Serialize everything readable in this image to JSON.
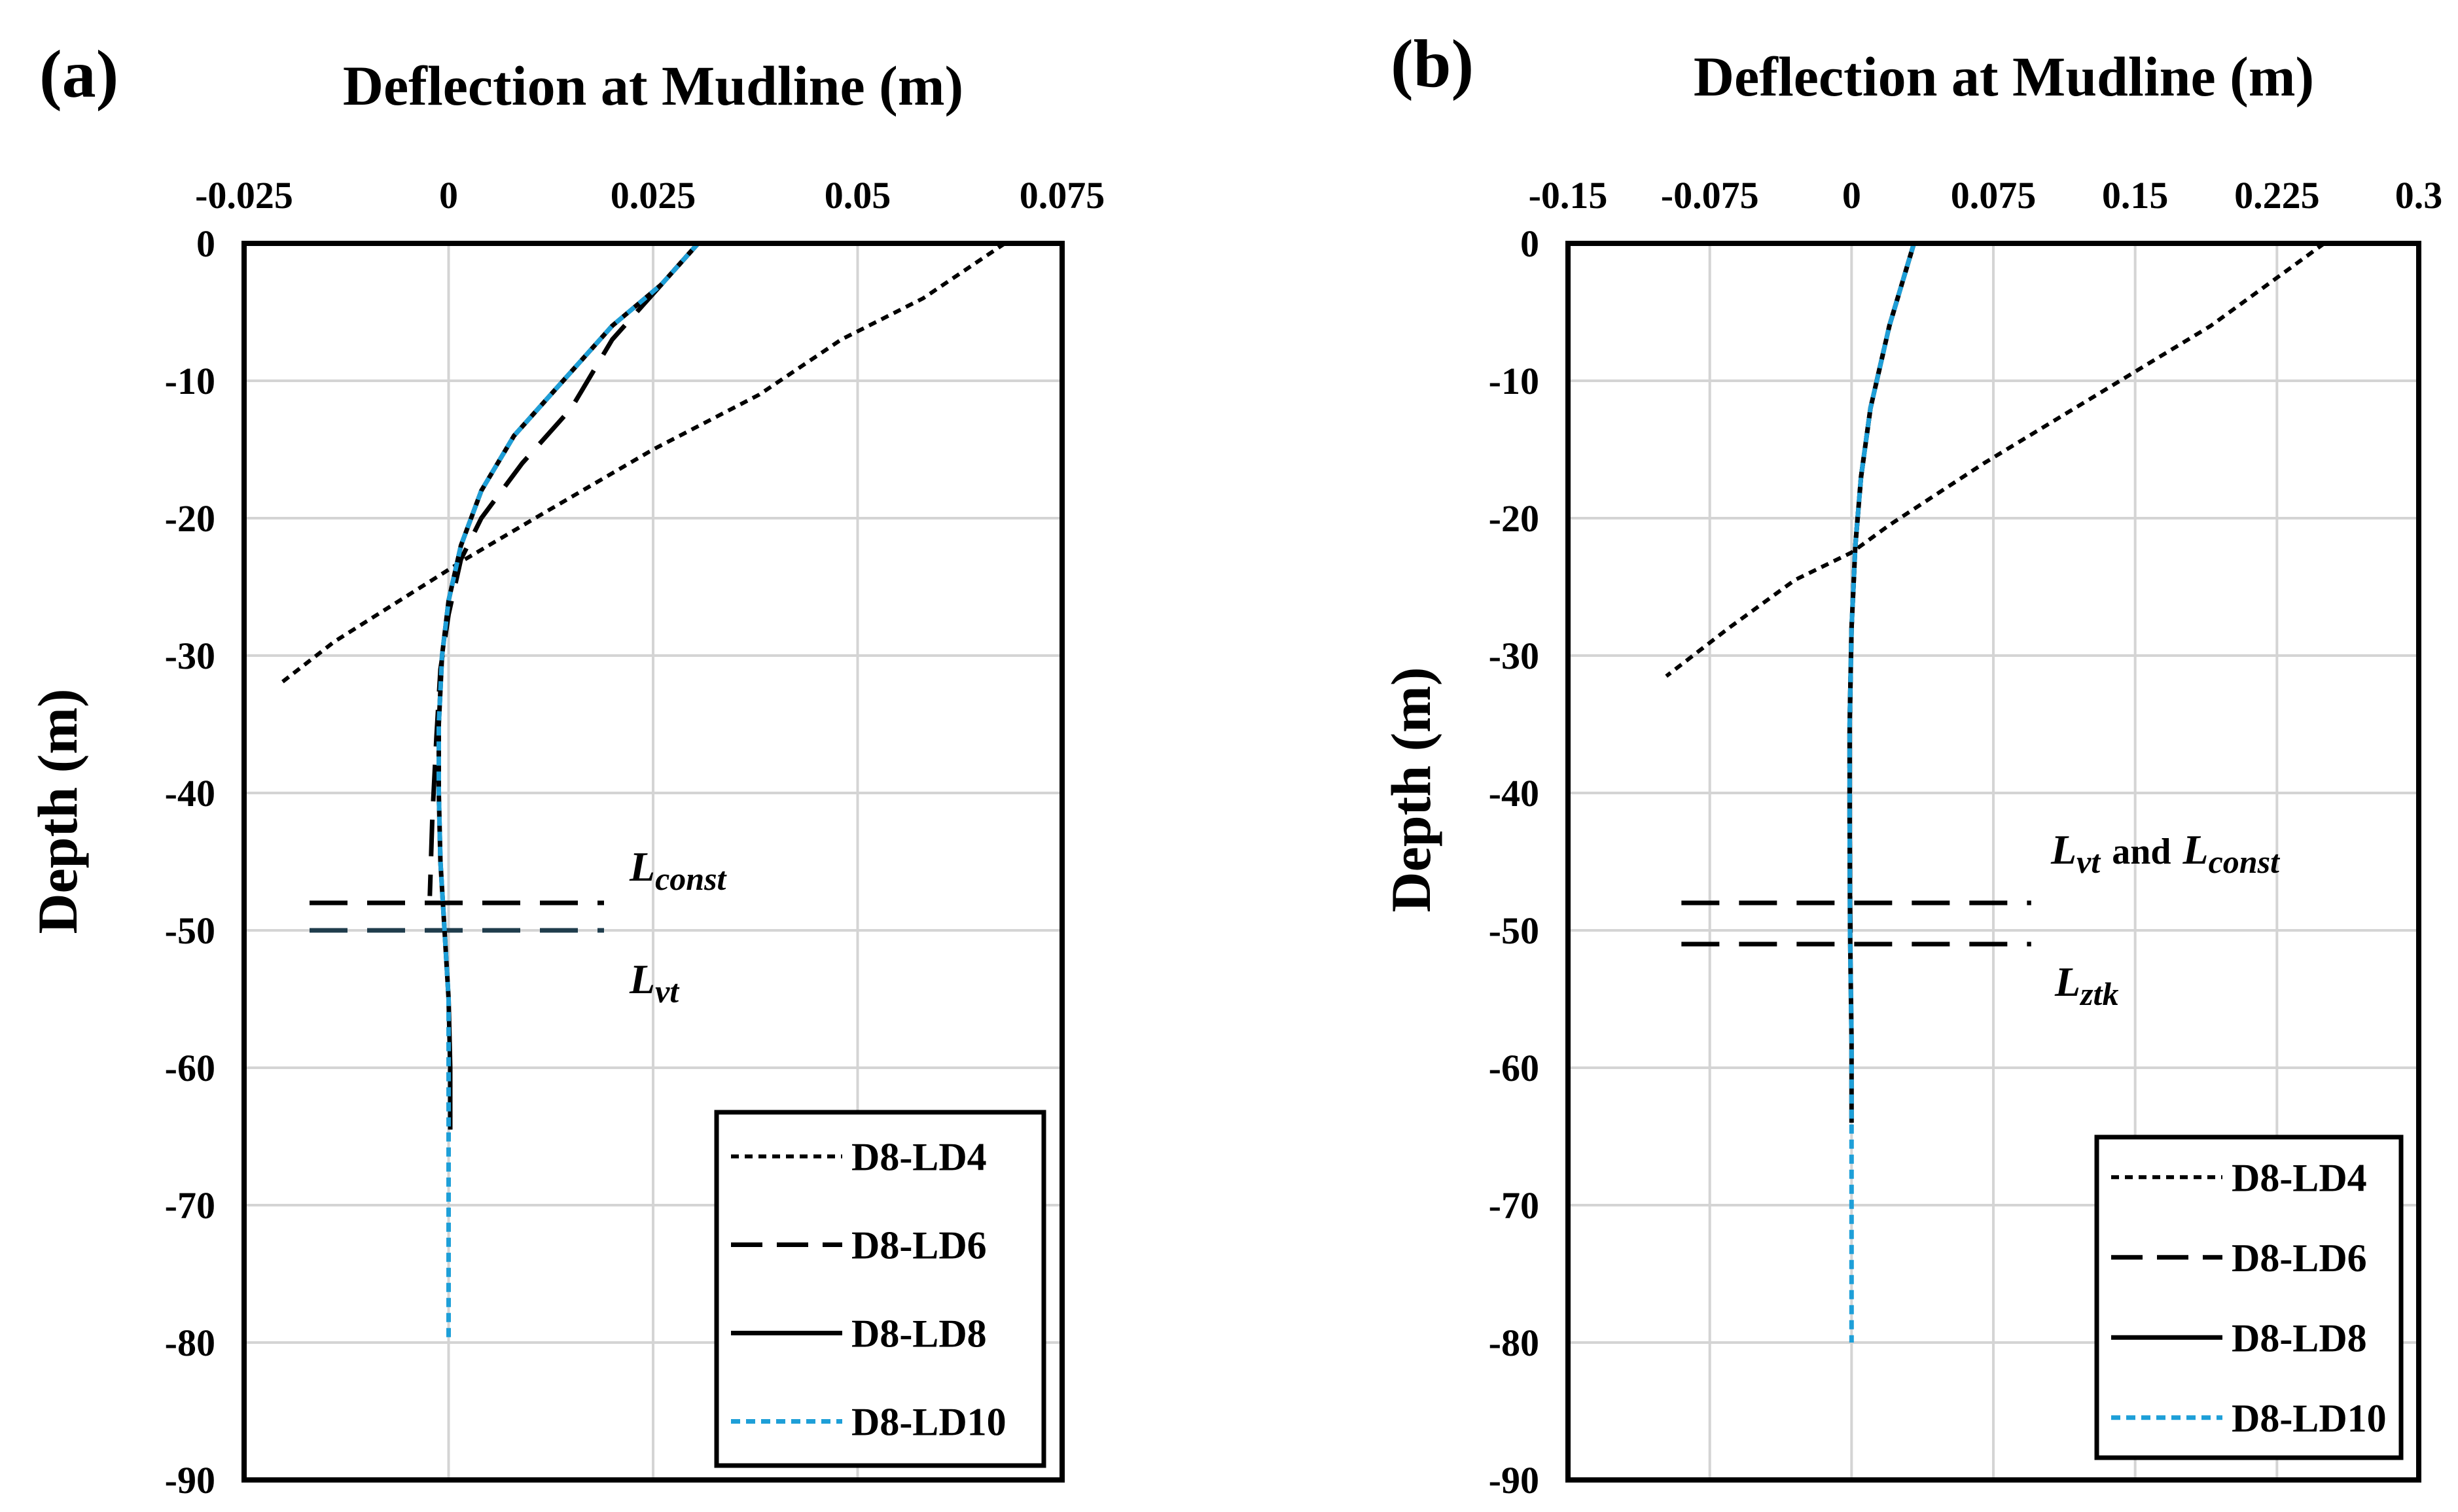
{
  "chart_data": [
    {
      "panel_label": "(a)",
      "type": "line",
      "title": "Deflection at Mudline (m)",
      "xlabel": "Deflection at Mudline (m)",
      "ylabel": "Depth (m)",
      "xlim": [
        -0.025,
        0.075
      ],
      "ylim": [
        -90,
        0
      ],
      "x_ticks": [
        "-0.025",
        "0",
        "0.025",
        "0.05",
        "0.075"
      ],
      "y_ticks": [
        "0",
        "-10",
        "-20",
        "-30",
        "-40",
        "-50",
        "-60",
        "-70",
        "-80",
        "-90"
      ],
      "grid": true,
      "legend_position": "bottom-right",
      "series": [
        {
          "name": "D8-LD4",
          "style": "dotted",
          "color": "#000000",
          "width": 6,
          "points": [
            [
              0.068,
              0
            ],
            [
              0.058,
              -4
            ],
            [
              0.048,
              -7
            ],
            [
              0.038,
              -11
            ],
            [
              0.025,
              -15
            ],
            [
              0.012,
              -19.5
            ],
            [
              0.002,
              -23
            ],
            [
              -0.006,
              -26
            ],
            [
              -0.014,
              -29
            ],
            [
              -0.0205,
              -32
            ]
          ]
        },
        {
          "name": "D8-LD6",
          "style": "long-dash",
          "color": "#000000",
          "width": 7,
          "points": [
            [
              0.0305,
              0
            ],
            [
              0.026,
              -3
            ],
            [
              0.02,
              -7
            ],
            [
              0.015,
              -12
            ],
            [
              0.009,
              -16
            ],
            [
              0.004,
              -20
            ],
            [
              0.0015,
              -23
            ],
            [
              0,
              -27
            ],
            [
              -0.001,
              -31
            ],
            [
              -0.0015,
              -36
            ],
            [
              -0.002,
              -42
            ],
            [
              -0.0023,
              -47.5
            ]
          ]
        },
        {
          "name": "D8-LD8",
          "style": "solid",
          "color": "#000000",
          "width": 7,
          "points": [
            [
              0.0305,
              0
            ],
            [
              0.026,
              -3
            ],
            [
              0.02,
              -6
            ],
            [
              0.014,
              -10
            ],
            [
              0.008,
              -14
            ],
            [
              0.004,
              -18
            ],
            [
              0.0015,
              -22
            ],
            [
              0,
              -26
            ],
            [
              -0.0008,
              -30
            ],
            [
              -0.0012,
              -35
            ],
            [
              -0.0012,
              -40
            ],
            [
              -0.001,
              -45
            ],
            [
              -0.0005,
              -50
            ],
            [
              0,
              -55
            ],
            [
              0.0002,
              -60
            ],
            [
              0.0002,
              -64.5
            ]
          ]
        },
        {
          "name": "D8-LD10",
          "style": "short-dash",
          "color": "#1e9fd8",
          "width": 7,
          "points": [
            [
              0.0305,
              0
            ],
            [
              0.026,
              -3
            ],
            [
              0.02,
              -6
            ],
            [
              0.014,
              -10
            ],
            [
              0.008,
              -14
            ],
            [
              0.004,
              -18
            ],
            [
              0.0015,
              -22
            ],
            [
              0,
              -26
            ],
            [
              -0.0008,
              -30
            ],
            [
              -0.0012,
              -35
            ],
            [
              -0.0012,
              -40
            ],
            [
              -0.001,
              -45
            ],
            [
              -0.0005,
              -50
            ],
            [
              0,
              -55
            ],
            [
              0,
              -60
            ],
            [
              0,
              -65
            ],
            [
              0,
              -70
            ],
            [
              0,
              -75
            ],
            [
              0,
              -80
            ]
          ]
        }
      ],
      "reference_lines": [
        {
          "name": "L_const",
          "depth": -48,
          "x_range": [
            -0.017,
            0.019
          ],
          "color": "#000000"
        },
        {
          "name": "L_vt",
          "depth": -50,
          "x_range": [
            -0.017,
            0.019
          ],
          "color": "#1f3c4c"
        }
      ],
      "annotations": [
        {
          "text_main": "L",
          "text_sub": "const",
          "near_depth": -48
        },
        {
          "text_main": "L",
          "text_sub": "vt",
          "near_depth": -50
        }
      ]
    },
    {
      "panel_label": "(b)",
      "type": "line",
      "title": "Deflection at Mudline (m)",
      "xlabel": "Deflection at Mudline (m)",
      "ylabel": "Depth (m)",
      "xlim": [
        -0.15,
        0.3
      ],
      "ylim": [
        -90,
        0
      ],
      "x_ticks": [
        "-0.15",
        "-0.075",
        "0",
        "0.075",
        "0.15",
        "0.225",
        "0.3"
      ],
      "y_ticks": [
        "0",
        "-10",
        "-20",
        "-30",
        "-40",
        "-50",
        "-60",
        "-70",
        "-80",
        "-90"
      ],
      "grid": true,
      "legend_position": "bottom-right",
      "series": [
        {
          "name": "D8-LD4",
          "style": "dotted",
          "color": "#000000",
          "width": 6,
          "points": [
            [
              0.25,
              0
            ],
            [
              0.19,
              -6
            ],
            [
              0.13,
              -11
            ],
            [
              0.07,
              -16
            ],
            [
              0.02,
              -20.5
            ],
            [
              0,
              -22.5
            ],
            [
              -0.03,
              -24.5
            ],
            [
              -0.065,
              -28
            ],
            [
              -0.098,
              -31.5
            ]
          ]
        },
        {
          "name": "D8-LD6",
          "style": "long-dash",
          "color": "#000000",
          "width": 7,
          "points": [
            [
              0.033,
              0
            ],
            [
              0.02,
              -6
            ],
            [
              0.01,
              -12
            ],
            [
              0.005,
              -17
            ],
            [
              0.002,
              -22
            ],
            [
              0,
              -28
            ],
            [
              -0.001,
              -35
            ],
            [
              -0.001,
              -42
            ],
            [
              -0.0008,
              -48
            ],
            [
              -0.0005,
              -51
            ]
          ]
        },
        {
          "name": "D8-LD8",
          "style": "solid",
          "color": "#000000",
          "width": 7,
          "points": [
            [
              0.033,
              0
            ],
            [
              0.02,
              -6
            ],
            [
              0.01,
              -12
            ],
            [
              0.005,
              -17
            ],
            [
              0.002,
              -22
            ],
            [
              0,
              -28
            ],
            [
              -0.001,
              -35
            ],
            [
              -0.001,
              -42
            ],
            [
              -0.0008,
              -50
            ],
            [
              0,
              -58
            ],
            [
              0,
              -64
            ]
          ]
        },
        {
          "name": "D8-LD10",
          "style": "short-dash",
          "color": "#1e9fd8",
          "width": 7,
          "points": [
            [
              0.033,
              0
            ],
            [
              0.02,
              -6
            ],
            [
              0.01,
              -12
            ],
            [
              0.005,
              -17
            ],
            [
              0.002,
              -22
            ],
            [
              0,
              -28
            ],
            [
              -0.001,
              -35
            ],
            [
              -0.001,
              -42
            ],
            [
              -0.0008,
              -50
            ],
            [
              0,
              -58
            ],
            [
              0,
              -65
            ],
            [
              0,
              -72
            ],
            [
              0,
              -80
            ]
          ]
        }
      ],
      "reference_lines": [
        {
          "name": "L_vt and L_const",
          "depth": -48,
          "x_range": [
            -0.09,
            0.095
          ],
          "color": "#000000"
        },
        {
          "name": "L_ztk",
          "depth": -51,
          "x_range": [
            -0.09,
            0.095
          ],
          "color": "#000000"
        }
      ],
      "annotations": [
        {
          "text_main": "L",
          "text_sub": "vt",
          "text_mid": "and",
          "text_main2": "L",
          "text_sub2": "const",
          "near_depth": -48
        },
        {
          "text_main": "L",
          "text_sub": "ztk",
          "near_depth": -51
        }
      ]
    }
  ]
}
